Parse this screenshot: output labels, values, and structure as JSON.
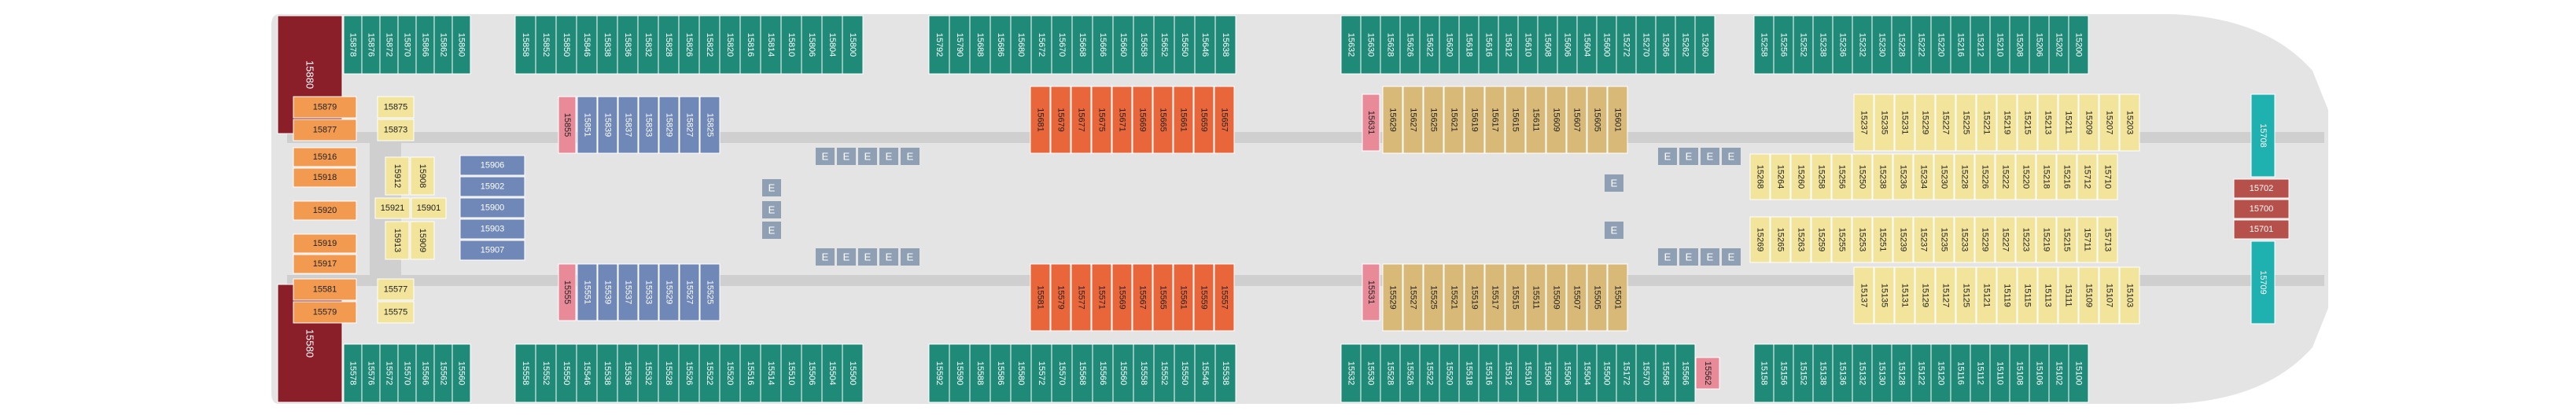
{
  "colors": {
    "balcony": "#1f8a78",
    "interior_blue": "#6f88b8",
    "orange_suite": "#e8663a",
    "tan_suite": "#d8b978",
    "yellow": "#f2e49a",
    "peach": "#f29a50",
    "maroon": "#8a1f2a",
    "pink": "#e88a98",
    "teal_bow": "#1fb1b0",
    "rust": "#b5504a",
    "hull": "#e4e4e4",
    "corridor": "#cfcfcf",
    "elevator": "#8fa0b5",
    "accessible": "#1a3a8a"
  },
  "top_row": {
    "group1": [
      "15878",
      "15876",
      "15872",
      "15870",
      "15866",
      "15862",
      "15860"
    ],
    "group2": [
      "15858",
      "15852",
      "15850",
      "15846",
      "15838",
      "15836",
      "15832",
      "15828",
      "15826",
      "15822",
      "15820",
      "15816",
      "15814",
      "15810",
      "15806",
      "15804",
      "15800"
    ],
    "group3": [
      "15792",
      "15790",
      "15688",
      "15686",
      "15680",
      "15672",
      "15670",
      "15668",
      "15666",
      "15660",
      "15658",
      "15652",
      "15650",
      "15646",
      "15638"
    ],
    "group4": [
      "15632",
      "15630",
      "15628",
      "15626",
      "15622",
      "15620",
      "15618",
      "15616",
      "15612",
      "15610",
      "15608",
      "15606",
      "15604",
      "15600",
      "15272",
      "15270",
      "15266",
      "15262",
      "15260"
    ],
    "group5": [
      "15258",
      "15256",
      "15252",
      "15238",
      "15236",
      "15232",
      "15230",
      "15228",
      "15222",
      "15220",
      "15216",
      "15212",
      "15210",
      "15208",
      "15206",
      "15202",
      "15200"
    ]
  },
  "bottom_row": {
    "group1": [
      "15578",
      "15576",
      "15572",
      "15570",
      "15566",
      "15562",
      "15560"
    ],
    "group2": [
      "15558",
      "15552",
      "15550",
      "15546",
      "15538",
      "15536",
      "15532",
      "15528",
      "15526",
      "15522",
      "15520",
      "15516",
      "15514",
      "15510",
      "15506",
      "15504",
      "15500"
    ],
    "group3": [
      "15592",
      "15590",
      "15588",
      "15586",
      "15580",
      "15572",
      "15570",
      "15568",
      "15566",
      "15560",
      "15558",
      "15552",
      "15550",
      "15546",
      "15538"
    ],
    "group4": [
      "15532",
      "15530",
      "15528",
      "15526",
      "15522",
      "15520",
      "15518",
      "15516",
      "15512",
      "15510",
      "15508",
      "15506",
      "15504",
      "15500",
      "15172",
      "15570",
      "15568",
      "15566"
    ],
    "pink_cabin": "15562",
    "group5": [
      "15158",
      "15156",
      "15152",
      "15138",
      "15136",
      "15132",
      "15130",
      "15128",
      "15122",
      "15120",
      "15116",
      "15112",
      "15110",
      "15108",
      "15106",
      "15102",
      "15100"
    ]
  },
  "aft_left": {
    "stern_top": "15880",
    "stern_bottom": "15580",
    "top_block": [
      "15879",
      "15877"
    ],
    "top_yellow": [
      "15875",
      "15873"
    ],
    "mid_block": [
      "15916",
      "15918",
      "15920",
      "15919",
      "15917"
    ],
    "bottom_block": [
      "15581",
      "15579"
    ],
    "bottom_yellow": [
      "15577",
      "15575"
    ],
    "rot_top": [
      "15912",
      "15908"
    ],
    "rot_bottom": [
      "15913",
      "15909"
    ],
    "mid_row": [
      "15921",
      "15901"
    ],
    "blue_stack": [
      "15906",
      "15902",
      "15900",
      "15903",
      "15907"
    ]
  },
  "interior_top": {
    "pink": "15855",
    "blue": [
      "15851",
      "15839",
      "15837",
      "15833",
      "15829",
      "15827",
      "15825"
    ]
  },
  "interior_bottom": {
    "pink": "15555",
    "blue": [
      "15551",
      "15539",
      "15537",
      "15533",
      "15529",
      "15527",
      "15525"
    ]
  },
  "orange_top": [
    "15681",
    "15679",
    "15677",
    "15675",
    "15671",
    "15669",
    "15665",
    "15661",
    "15659",
    "15657"
  ],
  "orange_bottom": [
    "15581",
    "15579",
    "15577",
    "15571",
    "15569",
    "15567",
    "15565",
    "15561",
    "15559",
    "15557"
  ],
  "tan_top": {
    "pink": "15631",
    "cabins": [
      "15629",
      "15627",
      "15625",
      "15621",
      "15619",
      "15617",
      "15615",
      "15611",
      "15609",
      "15607",
      "15605",
      "15601"
    ]
  },
  "tan_bottom": {
    "pink": "15531",
    "cabins": [
      "15529",
      "15527",
      "15525",
      "15521",
      "15519",
      "15517",
      "15515",
      "15511",
      "15509",
      "15507",
      "15505",
      "15501"
    ]
  },
  "fwd_yellow_top": [
    "15237",
    "15235",
    "15231",
    "15229",
    "15227",
    "15225",
    "15221",
    "15219",
    "15215",
    "15213",
    "15211",
    "15209",
    "15207",
    "15203"
  ],
  "fwd_yellow_bottom": [
    "15137",
    "15135",
    "15131",
    "15129",
    "15127",
    "15125",
    "15121",
    "15119",
    "15115",
    "15113",
    "15111",
    "15109",
    "15107",
    "15103"
  ],
  "fwd_middle_top": [
    "15268",
    "15264",
    "15260",
    "15258",
    "15256",
    "15250",
    "15238",
    "15236",
    "15234",
    "15230",
    "15228",
    "15226",
    "15222",
    "15220",
    "15218",
    "15216",
    "15712",
    "15710"
  ],
  "fwd_middle_bottom": [
    "15269",
    "15265",
    "15263",
    "15259",
    "15255",
    "15253",
    "15251",
    "15239",
    "15237",
    "15235",
    "15233",
    "15229",
    "15227",
    "15223",
    "15219",
    "15215",
    "15711",
    "15713"
  ],
  "bow": {
    "top": "15708",
    "bottom": "15709",
    "stack": [
      "15702",
      "15700",
      "15701"
    ]
  },
  "elevator_label": "E"
}
